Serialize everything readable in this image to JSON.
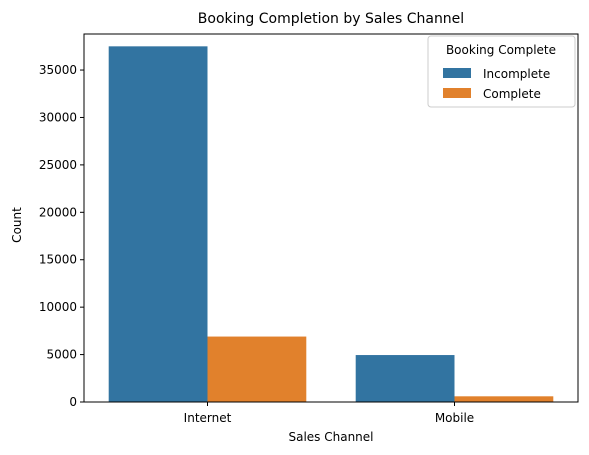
{
  "chart_data": {
    "type": "bar",
    "title": "Booking Completion by Sales Channel",
    "xlabel": "Sales Channel",
    "ylabel": "Count",
    "categories": [
      "Internet",
      "Mobile"
    ],
    "ylim": [
      0,
      38800
    ],
    "yticks": [
      0,
      5000,
      10000,
      15000,
      20000,
      25000,
      30000,
      35000
    ],
    "legend": {
      "title": "Booking Complete",
      "placement": "top-right"
    },
    "grid": false,
    "series": [
      {
        "name": "Incomplete",
        "color": "#3274a1",
        "values": [
          37500,
          4950
        ]
      },
      {
        "name": "Complete",
        "color": "#e1812c",
        "values": [
          6900,
          600
        ]
      }
    ]
  }
}
